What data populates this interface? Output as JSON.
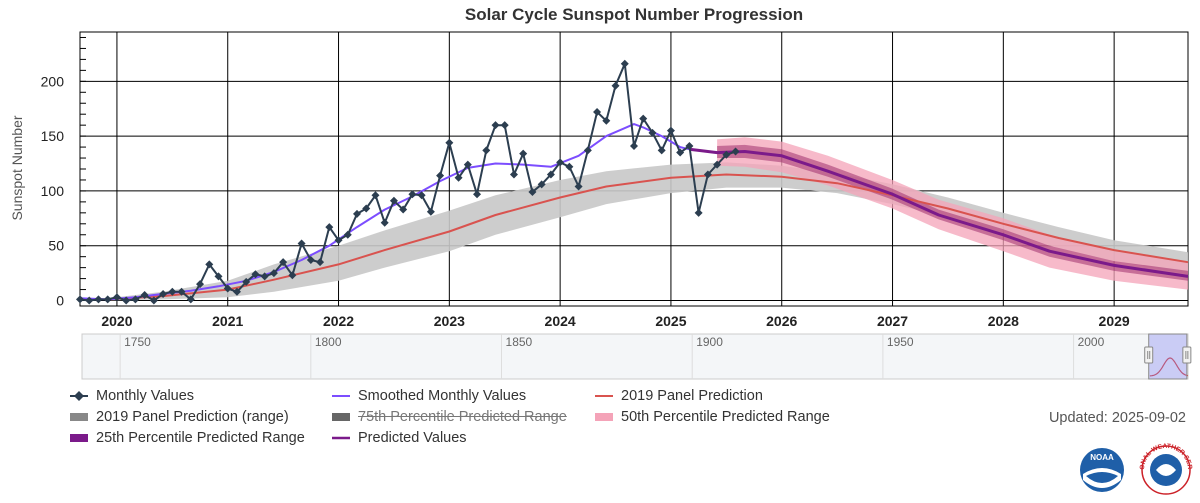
{
  "chart_data": {
    "type": "line",
    "title": "Solar Cycle Sunspot Number Progression",
    "ylabel": "Sunspot Number",
    "xlim": [
      "2019-09",
      "2029-09"
    ],
    "ylim": [
      -5,
      245
    ],
    "y_ticks": [
      0,
      50,
      100,
      150,
      200
    ],
    "x_ticks": [
      "2020",
      "2021",
      "2022",
      "2023",
      "2024",
      "2025",
      "2026",
      "2027",
      "2028",
      "2029"
    ],
    "grid": true,
    "legend_position": "bottom",
    "updated": "Updated: 2025-09-02",
    "series": [
      {
        "name": "Monthly Values",
        "color": "#2c3e50",
        "marker": "diamond",
        "x": [
          "2019-09",
          "2019-10",
          "2019-11",
          "2019-12",
          "2020-01",
          "2020-02",
          "2020-03",
          "2020-04",
          "2020-05",
          "2020-06",
          "2020-07",
          "2020-08",
          "2020-09",
          "2020-10",
          "2020-11",
          "2020-12",
          "2021-01",
          "2021-02",
          "2021-03",
          "2021-04",
          "2021-05",
          "2021-06",
          "2021-07",
          "2021-08",
          "2021-09",
          "2021-10",
          "2021-11",
          "2021-12",
          "2022-01",
          "2022-02",
          "2022-03",
          "2022-04",
          "2022-05",
          "2022-06",
          "2022-07",
          "2022-08",
          "2022-09",
          "2022-10",
          "2022-11",
          "2022-12",
          "2023-01",
          "2023-02",
          "2023-03",
          "2023-04",
          "2023-05",
          "2023-06",
          "2023-07",
          "2023-08",
          "2023-09",
          "2023-10",
          "2023-11",
          "2023-12",
          "2024-01",
          "2024-02",
          "2024-03",
          "2024-04",
          "2024-05",
          "2024-06",
          "2024-07",
          "2024-08",
          "2024-09",
          "2024-10",
          "2024-11",
          "2024-12",
          "2025-01",
          "2025-02",
          "2025-03",
          "2025-04",
          "2025-05",
          "2025-06",
          "2025-07",
          "2025-08"
        ],
        "y": [
          1,
          0,
          1,
          1,
          3,
          0,
          1,
          5,
          0,
          6,
          8,
          8,
          1,
          15,
          33,
          22,
          11,
          8,
          17,
          24,
          22,
          25,
          35,
          23,
          52,
          37,
          35,
          67,
          55,
          60,
          79,
          84,
          96,
          71,
          91,
          83,
          97,
          96,
          81,
          114,
          144,
          112,
          124,
          97,
          137,
          160,
          160,
          115,
          134,
          99,
          106,
          115,
          126,
          122,
          104,
          137,
          172,
          164,
          196,
          216,
          141,
          166,
          153,
          137,
          155,
          135,
          141,
          80,
          115,
          124,
          133,
          136
        ]
      },
      {
        "name": "Smoothed Monthly Values",
        "color": "#7c4dff",
        "x": [
          "2019-09",
          "2019-12",
          "2020-03",
          "2020-06",
          "2020-09",
          "2020-12",
          "2021-03",
          "2021-06",
          "2021-09",
          "2021-12",
          "2022-03",
          "2022-06",
          "2022-09",
          "2022-12",
          "2023-03",
          "2023-06",
          "2023-09",
          "2023-12",
          "2024-03",
          "2024-06",
          "2024-09",
          "2024-10",
          "2024-12",
          "2025-02",
          "2025-03"
        ],
        "y": [
          2,
          1,
          3,
          6,
          9,
          13,
          18,
          26,
          37,
          50,
          67,
          83,
          95,
          109,
          121,
          125,
          124,
          122,
          132,
          150,
          161,
          158,
          150,
          140,
          138
        ]
      },
      {
        "name": "2019 Panel Prediction",
        "color": "#d9534f",
        "x": [
          "2019-12",
          "2020-06",
          "2021-01",
          "2021-06",
          "2022-01",
          "2022-06",
          "2023-01",
          "2023-06",
          "2024-01",
          "2024-06",
          "2025-01",
          "2025-07",
          "2026-01",
          "2026-07",
          "2027-01",
          "2027-07",
          "2028-01",
          "2028-07",
          "2029-01",
          "2029-09"
        ],
        "y": [
          1,
          4,
          10,
          19,
          33,
          46,
          63,
          78,
          94,
          104,
          112,
          115,
          113,
          107,
          96,
          84,
          70,
          57,
          46,
          35
        ]
      },
      {
        "name": "2019 Panel Prediction (range)",
        "color": "#c8c8c8",
        "x": [
          "2019-12",
          "2020-06",
          "2021-01",
          "2021-06",
          "2022-01",
          "2022-06",
          "2023-01",
          "2023-06",
          "2024-01",
          "2024-06",
          "2025-01",
          "2025-07",
          "2026-01",
          "2026-07",
          "2027-01",
          "2027-07",
          "2028-01",
          "2028-07",
          "2029-01",
          "2029-09"
        ],
        "low": [
          0,
          1,
          3,
          8,
          18,
          30,
          45,
          60,
          76,
          88,
          98,
          103,
          103,
          98,
          88,
          76,
          62,
          48,
          36,
          24
        ],
        "high": [
          2,
          8,
          18,
          33,
          50,
          64,
          82,
          96,
          110,
          118,
          124,
          126,
          123,
          116,
          106,
          94,
          80,
          67,
          55,
          44
        ]
      },
      {
        "name": "75th Percentile Predicted Range",
        "color": "#666666",
        "hidden": true
      },
      {
        "name": "50th Percentile Predicted Range",
        "color": "#f4a3b8",
        "x": [
          "2025-06",
          "2025-09",
          "2026-01",
          "2026-06",
          "2027-01",
          "2027-06",
          "2028-01",
          "2028-06",
          "2029-01",
          "2029-09"
        ],
        "low": [
          123,
          122,
          117,
          105,
          84,
          65,
          45,
          30,
          18,
          10
        ],
        "high": [
          147,
          149,
          145,
          132,
          110,
          92,
          75,
          60,
          45,
          35
        ]
      },
      {
        "name": "25th Percentile Predicted Range",
        "color": "#a0306e",
        "x": [
          "2025-06",
          "2025-09",
          "2026-01",
          "2026-06",
          "2027-01",
          "2027-06",
          "2028-01",
          "2028-06",
          "2029-01",
          "2029-09"
        ],
        "low": [
          130,
          130,
          126,
          113,
          92,
          74,
          55,
          40,
          27,
          18
        ],
        "high": [
          141,
          142,
          138,
          124,
          102,
          83,
          65,
          50,
          36,
          27
        ]
      },
      {
        "name": "Predicted Values",
        "color": "#7b1a8a",
        "x": [
          "2025-03",
          "2025-06",
          "2025-09",
          "2026-01",
          "2026-06",
          "2027-01",
          "2027-06",
          "2028-01",
          "2028-06",
          "2029-01",
          "2029-09"
        ],
        "y": [
          138,
          135,
          136,
          132,
          118,
          97,
          78,
          60,
          45,
          32,
          22
        ]
      }
    ],
    "navigator": {
      "x_ticks": [
        "1750",
        "1800",
        "1850",
        "1900",
        "1950",
        "2000"
      ],
      "xlim": [
        1740,
        2030
      ]
    }
  },
  "legend": {
    "items": [
      {
        "label": "Monthly Values"
      },
      {
        "label": "Smoothed Monthly Values"
      },
      {
        "label": "2019 Panel Prediction"
      },
      {
        "label": "2019 Panel Prediction (range)"
      },
      {
        "label": "75th Percentile Predicted Range"
      },
      {
        "label": "50th Percentile Predicted Range"
      },
      {
        "label": "25th Percentile Predicted Range"
      },
      {
        "label": "Predicted Values"
      }
    ]
  },
  "logos": {
    "noaa": "NOAA",
    "nws": "NATIONAL WEATHER SERVICE"
  }
}
